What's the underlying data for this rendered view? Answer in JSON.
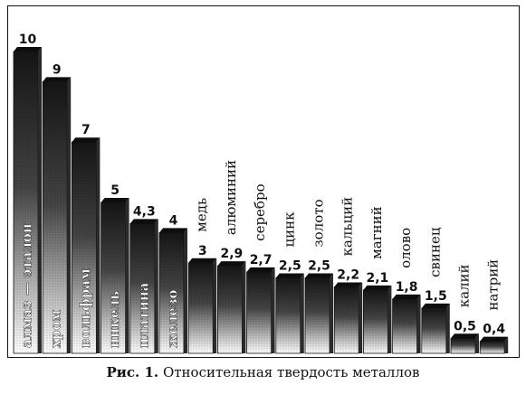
{
  "chart_data": {
    "type": "bar",
    "title": "",
    "xlabel": "",
    "ylabel": "",
    "ylim": [
      0,
      10
    ],
    "categories": [
      "алмаз — эталон",
      "хром",
      "вольфрам",
      "никель",
      "платина",
      "железо",
      "медь",
      "алюминий",
      "серебро",
      "цинк",
      "золото",
      "кальций",
      "магний",
      "олово",
      "свинец",
      "калий",
      "натрий"
    ],
    "values": [
      10,
      9,
      7,
      5,
      4.3,
      4,
      3,
      2.9,
      2.7,
      2.5,
      2.5,
      2.2,
      2.1,
      1.8,
      1.5,
      0.5,
      0.4
    ],
    "value_labels": [
      "10",
      "9",
      "7",
      "5",
      "4,3",
      "4",
      "3",
      "2,9",
      "2,7",
      "2,5",
      "2,5",
      "2,2",
      "2,1",
      "1,8",
      "1,5",
      "0,5",
      "0,4"
    ],
    "grid": false,
    "legend": "none",
    "colors": {
      "bar_dark": "#1a1a1a",
      "bar_light": "#ffffff",
      "text": "#111111"
    }
  },
  "caption": {
    "label": "Рис. 1.",
    "text": "Относительная твердость металлов"
  }
}
